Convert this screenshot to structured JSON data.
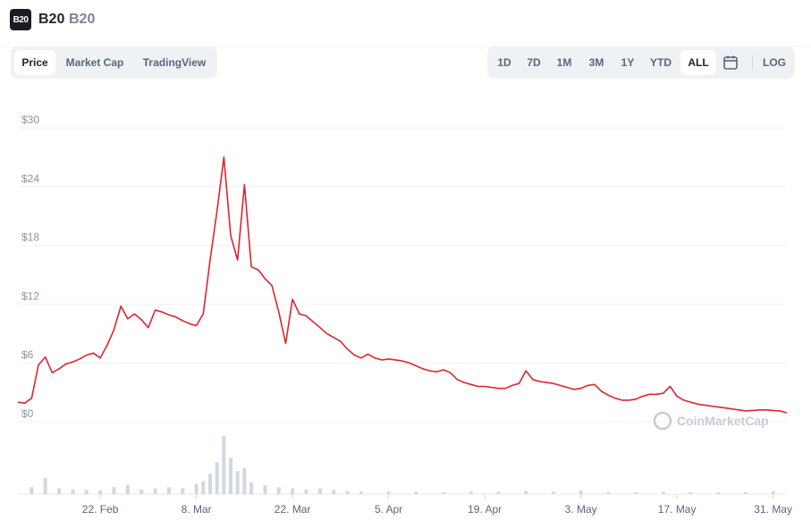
{
  "header": {
    "name": "B20",
    "symbol": "B20",
    "logo_text": "B20"
  },
  "tabs": [
    {
      "label": "Price",
      "active": true
    },
    {
      "label": "Market Cap",
      "active": false
    },
    {
      "label": "TradingView",
      "active": false
    }
  ],
  "ranges": [
    {
      "label": "1D",
      "active": false
    },
    {
      "label": "7D",
      "active": false
    },
    {
      "label": "1M",
      "active": false
    },
    {
      "label": "3M",
      "active": false
    },
    {
      "label": "1Y",
      "active": false
    },
    {
      "label": "YTD",
      "active": false
    },
    {
      "label": "ALL",
      "active": true
    }
  ],
  "calendar_icon": "calendar-icon",
  "log_label": "LOG",
  "watermark": "CoinMarketCap",
  "colors": {
    "line": "#e0242e",
    "grid": "#eff2f5",
    "volume": "#d3d8e0",
    "accent": "#222531"
  },
  "chart_data": {
    "type": "line",
    "title": "",
    "xlabel": "",
    "ylabel": "",
    "ylim": [
      0,
      30
    ],
    "y_ticks": [
      0,
      6,
      12,
      18,
      24,
      30
    ],
    "y_tick_labels": [
      "$0",
      "$6",
      "$12",
      "$18",
      "$24",
      "$30"
    ],
    "x_tick_labels": [
      "22. Feb",
      "8. Mar",
      "22. Mar",
      "5. Apr",
      "19. Apr",
      "3. May",
      "17. May",
      "31. May"
    ],
    "x_range": [
      "2021-02-10",
      "2021-06-02"
    ],
    "grid": true,
    "series": [
      {
        "type": "line",
        "x": [
          "2021-02-10",
          "2021-02-11",
          "2021-02-12",
          "2021-02-13",
          "2021-02-14",
          "2021-02-15",
          "2021-02-16",
          "2021-02-17",
          "2021-02-18",
          "2021-02-19",
          "2021-02-20",
          "2021-02-21",
          "2021-02-22",
          "2021-02-23",
          "2021-02-24",
          "2021-02-25",
          "2021-02-26",
          "2021-02-27",
          "2021-02-28",
          "2021-03-01",
          "2021-03-02",
          "2021-03-03",
          "2021-03-04",
          "2021-03-05",
          "2021-03-06",
          "2021-03-07",
          "2021-03-08",
          "2021-03-09",
          "2021-03-10",
          "2021-03-11",
          "2021-03-12",
          "2021-03-13",
          "2021-03-14",
          "2021-03-15",
          "2021-03-16",
          "2021-03-17",
          "2021-03-18",
          "2021-03-19",
          "2021-03-20",
          "2021-03-21",
          "2021-03-22",
          "2021-03-23",
          "2021-03-24",
          "2021-03-25",
          "2021-03-26",
          "2021-03-27",
          "2021-03-28",
          "2021-03-29",
          "2021-03-30",
          "2021-03-31",
          "2021-04-01",
          "2021-04-02",
          "2021-04-03",
          "2021-04-04",
          "2021-04-05",
          "2021-04-06",
          "2021-04-07",
          "2021-04-08",
          "2021-04-09",
          "2021-04-10",
          "2021-04-11",
          "2021-04-12",
          "2021-04-13",
          "2021-04-14",
          "2021-04-15",
          "2021-04-16",
          "2021-04-17",
          "2021-04-18",
          "2021-04-19",
          "2021-04-20",
          "2021-04-21",
          "2021-04-22",
          "2021-04-23",
          "2021-04-24",
          "2021-04-25",
          "2021-04-26",
          "2021-04-27",
          "2021-04-28",
          "2021-04-29",
          "2021-04-30",
          "2021-05-01",
          "2021-05-02",
          "2021-05-03",
          "2021-05-04",
          "2021-05-05",
          "2021-05-06",
          "2021-05-07",
          "2021-05-08",
          "2021-05-09",
          "2021-05-10",
          "2021-05-11",
          "2021-05-12",
          "2021-05-13",
          "2021-05-14",
          "2021-05-15",
          "2021-05-16",
          "2021-05-17",
          "2021-05-18",
          "2021-05-19",
          "2021-05-20",
          "2021-05-21",
          "2021-05-22",
          "2021-05-23",
          "2021-05-24",
          "2021-05-25",
          "2021-05-26",
          "2021-05-27",
          "2021-05-28",
          "2021-05-29",
          "2021-05-30",
          "2021-05-31",
          "2021-06-01",
          "2021-06-02"
        ],
        "values": [
          2.0,
          1.9,
          2.4,
          5.8,
          6.6,
          5.0,
          5.4,
          5.9,
          6.1,
          6.4,
          6.8,
          7.0,
          6.5,
          7.8,
          9.4,
          11.8,
          10.5,
          11.0,
          10.4,
          9.6,
          11.4,
          11.2,
          10.9,
          10.7,
          10.3,
          10.0,
          9.8,
          11.0,
          16.5,
          21.5,
          27.0,
          19.0,
          16.5,
          24.2,
          15.8,
          15.5,
          14.6,
          13.9,
          11.2,
          8.0,
          12.5,
          11.0,
          10.8,
          10.2,
          9.6,
          9.0,
          8.6,
          8.2,
          7.4,
          6.8,
          6.5,
          6.9,
          6.5,
          6.3,
          6.4,
          6.3,
          6.2,
          6.0,
          5.7,
          5.4,
          5.2,
          5.1,
          5.3,
          5.0,
          4.3,
          4.0,
          3.8,
          3.6,
          3.6,
          3.5,
          3.4,
          3.4,
          3.7,
          3.9,
          5.2,
          4.3,
          4.1,
          4.0,
          3.9,
          3.7,
          3.5,
          3.3,
          3.4,
          3.7,
          3.8,
          3.1,
          2.7,
          2.4,
          2.2,
          2.2,
          2.3,
          2.6,
          2.8,
          2.8,
          2.9,
          3.6,
          2.6,
          2.2,
          2.0,
          1.8,
          1.7,
          1.6,
          1.5,
          1.4,
          1.3,
          1.2,
          1.1,
          1.15,
          1.2,
          1.2,
          1.15,
          1.1,
          0.9
        ]
      }
    ],
    "volume": {
      "type": "bar",
      "x": [
        "2021-02-12",
        "2021-02-14",
        "2021-02-16",
        "2021-02-18",
        "2021-02-20",
        "2021-02-22",
        "2021-02-24",
        "2021-02-26",
        "2021-02-28",
        "2021-03-02",
        "2021-03-04",
        "2021-03-06",
        "2021-03-08",
        "2021-03-09",
        "2021-03-10",
        "2021-03-11",
        "2021-03-12",
        "2021-03-13",
        "2021-03-14",
        "2021-03-15",
        "2021-03-16",
        "2021-03-18",
        "2021-03-20",
        "2021-03-22",
        "2021-03-24",
        "2021-03-26",
        "2021-03-28",
        "2021-03-30",
        "2021-04-01",
        "2021-04-05",
        "2021-04-09",
        "2021-04-13",
        "2021-04-17",
        "2021-04-21",
        "2021-04-25",
        "2021-04-29",
        "2021-05-03",
        "2021-05-07",
        "2021-05-11",
        "2021-05-15",
        "2021-05-19",
        "2021-05-23",
        "2021-05-27",
        "2021-05-31"
      ],
      "values": [
        0.12,
        0.28,
        0.1,
        0.08,
        0.07,
        0.06,
        0.12,
        0.16,
        0.08,
        0.1,
        0.12,
        0.1,
        0.18,
        0.22,
        0.35,
        0.55,
        1.0,
        0.62,
        0.4,
        0.45,
        0.2,
        0.15,
        0.12,
        0.1,
        0.08,
        0.1,
        0.07,
        0.05,
        0.04,
        0.04,
        0.04,
        0.03,
        0.04,
        0.04,
        0.05,
        0.04,
        0.06,
        0.03,
        0.03,
        0.04,
        0.03,
        0.03,
        0.03,
        0.05
      ]
    }
  }
}
